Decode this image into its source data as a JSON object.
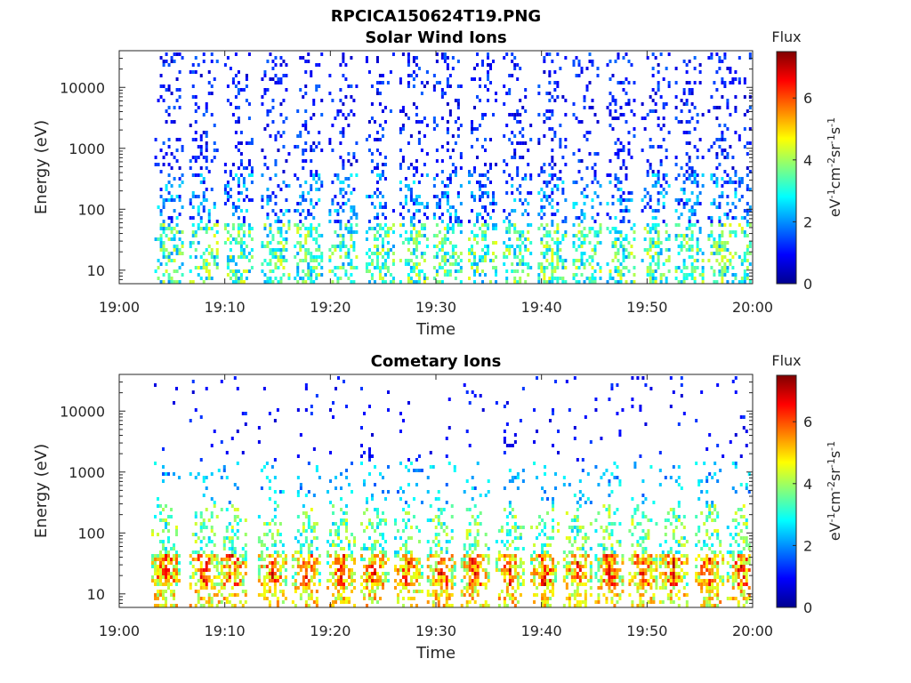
{
  "figure_title": "RPCICA150624T19.PNG",
  "chart_data": [
    {
      "type": "heatmap",
      "title": "Solar Wind Ions",
      "xlabel": "Time",
      "ylabel": "Energy (eV)",
      "x_ticks": [
        "19:00",
        "19:10",
        "19:20",
        "19:30",
        "19:40",
        "19:50",
        "20:00"
      ],
      "x_range": [
        "19:00",
        "20:00"
      ],
      "y_scale": "log",
      "y_ticks": [
        "10",
        "100",
        "1000",
        "10000"
      ],
      "y_range": [
        6,
        40000
      ],
      "colorbar": {
        "title": "Flux",
        "label": "eV⁻¹cm⁻²sr⁻¹s⁻¹",
        "label_parts": [
          {
            "t": "eV",
            "sup": false
          },
          {
            "t": "-1",
            "sup": true
          },
          {
            "t": "cm",
            "sup": false
          },
          {
            "t": "-2",
            "sup": true
          },
          {
            "t": "sr",
            "sup": false
          },
          {
            "t": "-1",
            "sup": true
          },
          {
            "t": "s",
            "sup": false
          },
          {
            "t": "-1",
            "sup": true
          }
        ],
        "ticks": [
          "0",
          "2",
          "4",
          "6"
        ],
        "range": [
          0,
          7.5
        ],
        "colormap": "jet"
      },
      "bursts_minutes": [
        4.6,
        7.9,
        11.2,
        14.7,
        17.8,
        21.1,
        24.6,
        27.8,
        31.0,
        34.3,
        37.6,
        40.9,
        44.2,
        47.4,
        50.7,
        53.9,
        57.0,
        59.9
      ],
      "description_of_values": "Sparse spectrogram: low-flux (blue) dots from ~10 eV to ~30000 eV, higher flux (cyan-yellow) near 20-50 eV"
    },
    {
      "type": "heatmap",
      "title": "Cometary Ions",
      "xlabel": "Time",
      "ylabel": "Energy (eV)",
      "x_ticks": [
        "19:00",
        "19:10",
        "19:20",
        "19:30",
        "19:40",
        "19:50",
        "20:00"
      ],
      "x_range": [
        "19:00",
        "20:00"
      ],
      "y_scale": "log",
      "y_ticks": [
        "10",
        "100",
        "1000",
        "10000"
      ],
      "y_range": [
        6,
        40000
      ],
      "colorbar": {
        "title": "Flux",
        "label": "eV⁻¹cm⁻²sr⁻¹s⁻¹",
        "label_parts": [
          {
            "t": "eV",
            "sup": false
          },
          {
            "t": "-1",
            "sup": true
          },
          {
            "t": "cm",
            "sup": false
          },
          {
            "t": "-2",
            "sup": true
          },
          {
            "t": "sr",
            "sup": false
          },
          {
            "t": "-1",
            "sup": true
          },
          {
            "t": "s",
            "sup": false
          },
          {
            "t": "-1",
            "sup": true
          }
        ],
        "ticks": [
          "0",
          "2",
          "4",
          "6"
        ],
        "range": [
          0,
          7.5
        ],
        "colormap": "jet"
      },
      "bursts_minutes": [
        4.3,
        7.9,
        10.6,
        14.4,
        17.6,
        20.9,
        24.1,
        27.3,
        30.4,
        33.6,
        36.9,
        40.2,
        43.3,
        46.3,
        49.5,
        52.4,
        55.8,
        58.8
      ],
      "description_of_values": "High flux (orange-red, ~6-7) band at ~20-50 eV, green-cyan plumes up to ~1000 eV, sparse blue dots up to ~30000 eV"
    }
  ]
}
